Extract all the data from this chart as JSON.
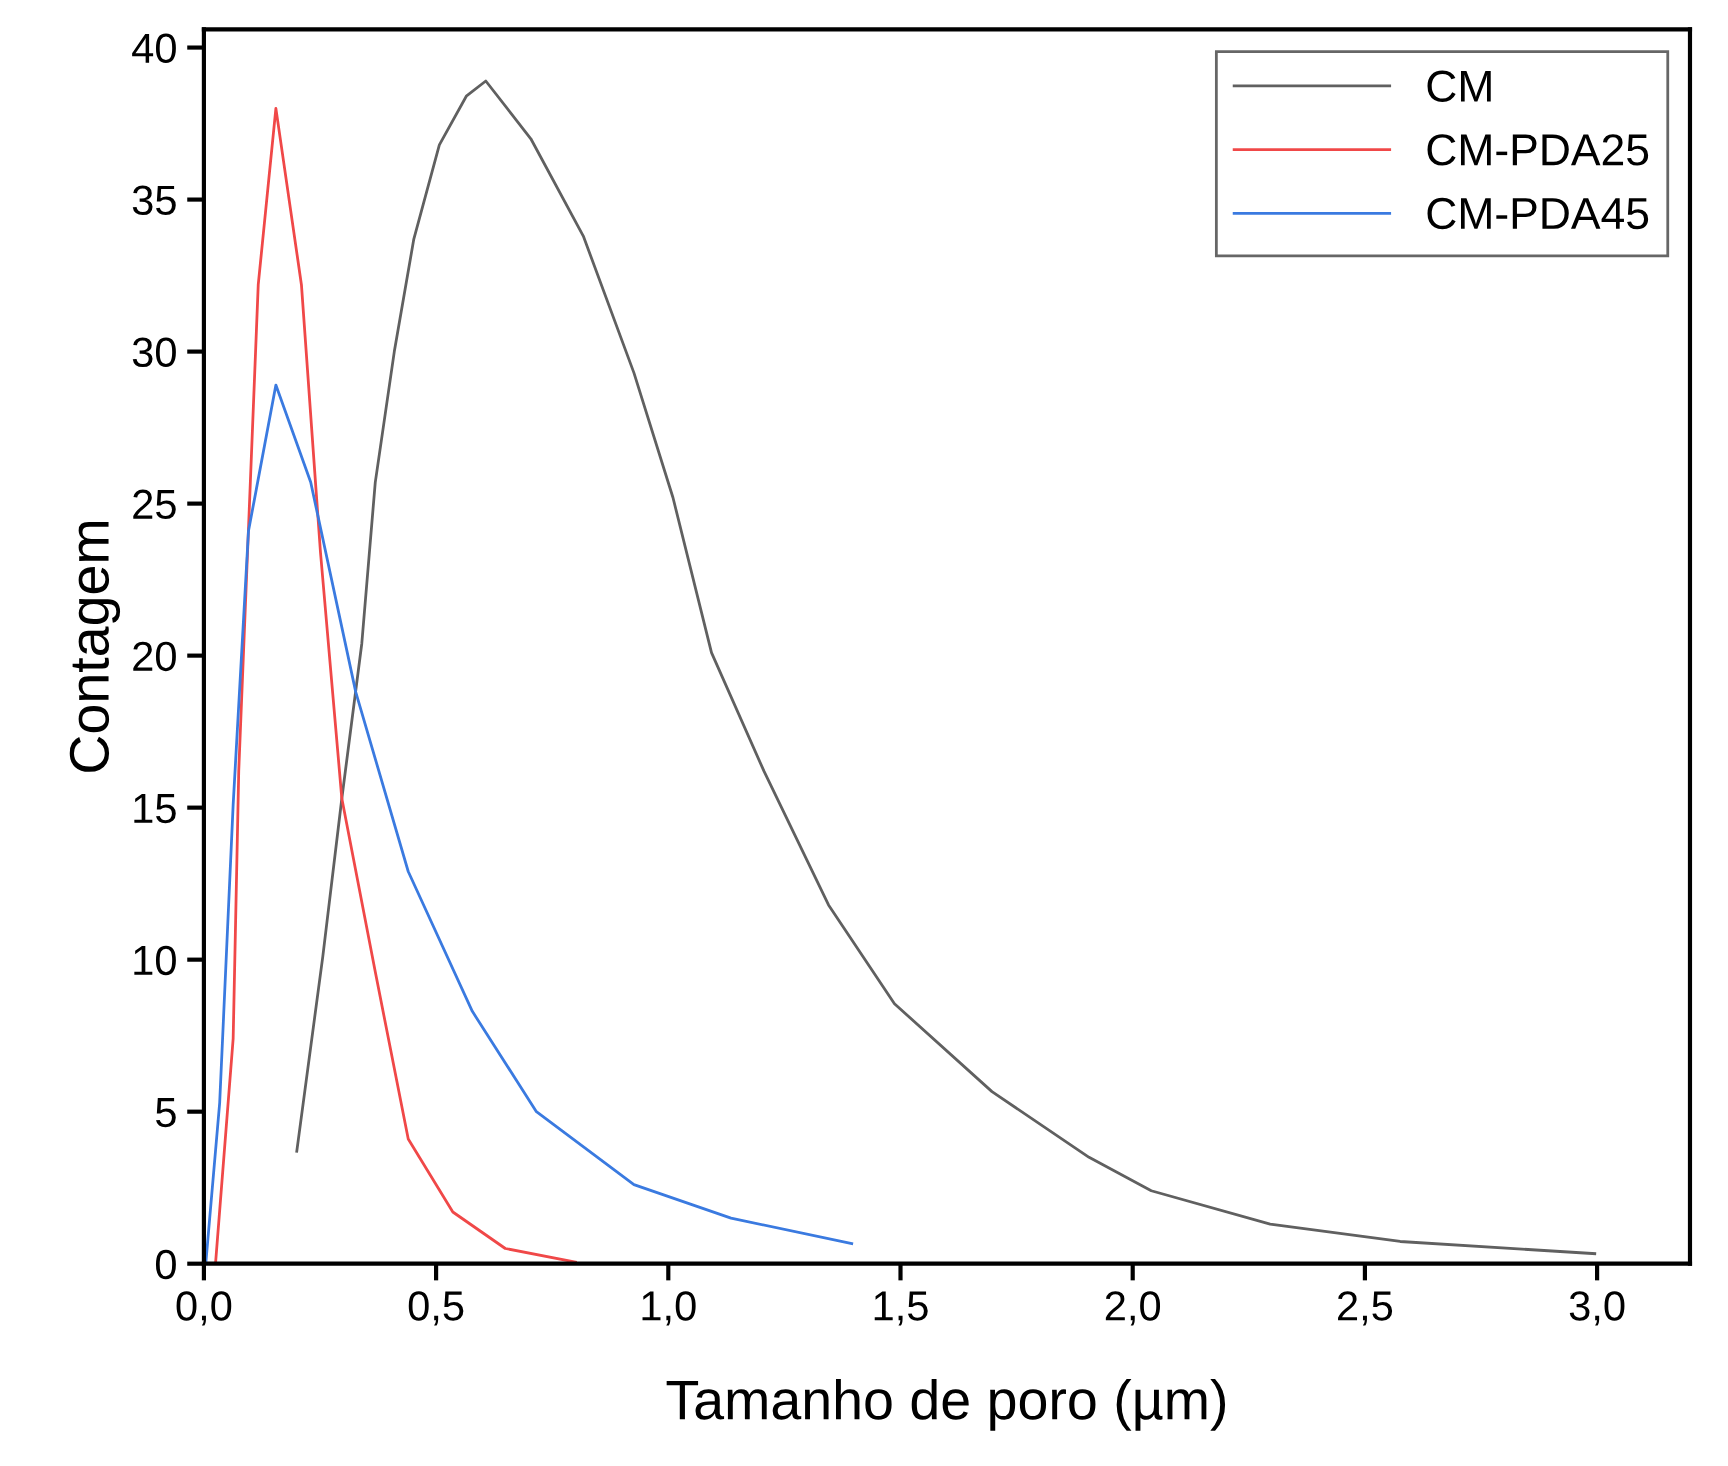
{
  "chart_data": {
    "type": "line",
    "xlabel": "Tamanho de poro (µm)",
    "ylabel": "Contagem",
    "xlim": [
      0,
      3.2
    ],
    "ylim": [
      0,
      40.6
    ],
    "xticks": [
      {
        "value": 0,
        "label": "0,0"
      },
      {
        "value": 0.5,
        "label": "0,5"
      },
      {
        "value": 1,
        "label": "1,0"
      },
      {
        "value": 1.5,
        "label": "1,5"
      },
      {
        "value": 2,
        "label": "2,0"
      },
      {
        "value": 2.5,
        "label": "2,5"
      },
      {
        "value": 3,
        "label": "3,0"
      }
    ],
    "yticks": [
      0,
      5,
      10,
      15,
      20,
      25,
      30,
      35,
      40
    ],
    "legend": "top right",
    "grid": false,
    "marker": "none",
    "line_style": "solid",
    "series": [
      {
        "name": "CM",
        "color": "#606060",
        "x": [
          0.2,
          0.256,
          0.297,
          0.34,
          0.369,
          0.41,
          0.452,
          0.507,
          0.565,
          0.607,
          0.704,
          0.817,
          0.926,
          1.01,
          1.093,
          1.206,
          1.345,
          1.487,
          1.697,
          1.906,
          2.04,
          2.296,
          2.576,
          2.995
        ],
        "values": [
          3.7,
          10.1,
          15.3,
          20.4,
          25.7,
          30,
          33.7,
          36.8,
          38.4,
          38.9,
          37,
          33.8,
          29.3,
          25.2,
          20.1,
          16.2,
          11.8,
          8.55,
          5.66,
          3.5,
          2.4,
          1.3,
          0.73,
          0.33
        ]
      },
      {
        "name": "CM-PDA25",
        "color": "#f04848",
        "x": [
          0.025,
          0.063,
          0.075,
          0.1,
          0.117,
          0.155,
          0.21,
          0.251,
          0.297,
          0.369,
          0.44,
          0.536,
          0.649,
          0.8
        ],
        "values": [
          0,
          7.4,
          16.2,
          25.7,
          32.2,
          38,
          32.2,
          23.4,
          15.3,
          9.6,
          4.1,
          1.7,
          0.5,
          0.05
        ]
      },
      {
        "name": "CM-PDA45",
        "color": "#3a7ae0",
        "x": [
          0.004,
          0.034,
          0.063,
          0.096,
          0.155,
          0.23,
          0.327,
          0.44,
          0.578,
          0.716,
          0.926,
          1.135,
          1.395
        ],
        "values": [
          0,
          5.3,
          15.1,
          24.1,
          28.9,
          25.7,
          18.8,
          12.9,
          8.3,
          5,
          2.6,
          1.5,
          0.66
        ]
      }
    ]
  }
}
